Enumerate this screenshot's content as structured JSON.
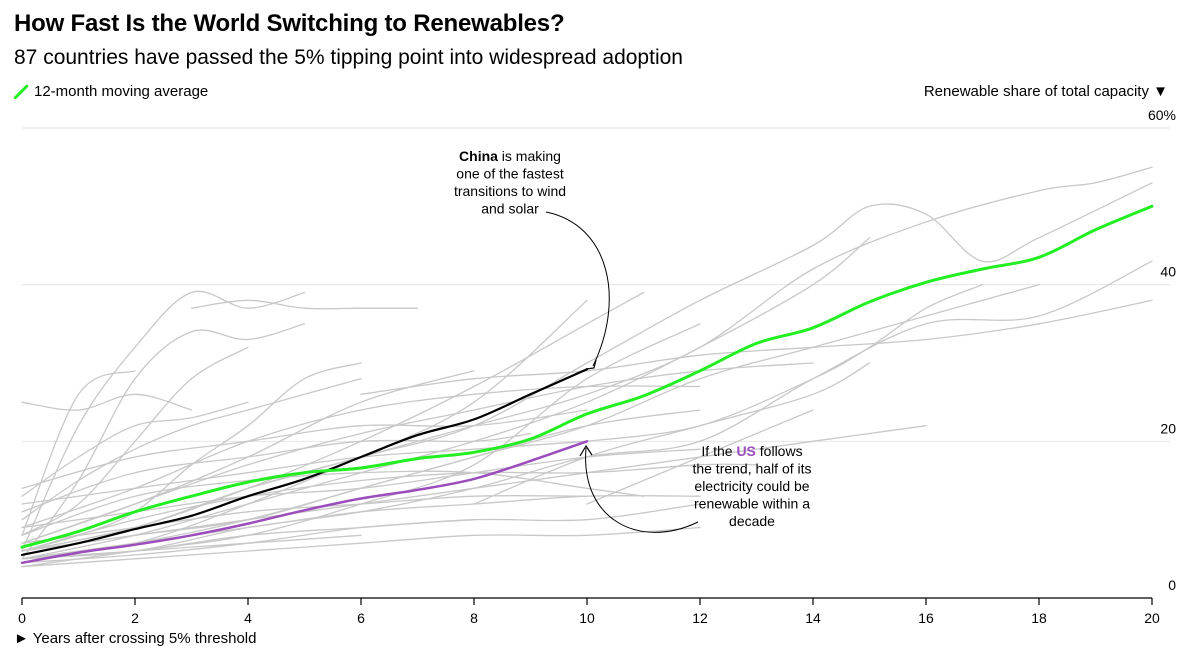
{
  "title": "How Fast Is the World Switching to Renewables?",
  "subtitle": "87 countries have passed the 5% tipping point into widespread adoption",
  "legend": {
    "label": "12-month moving average",
    "color": "#22ee22"
  },
  "y_axis_title": "Renewable share of total capacity ▼",
  "x_axis_title": "► Years after crossing 5% threshold",
  "annotations": {
    "china": [
      "China is making",
      "one of the fastest",
      "transitions to wind",
      "and solar"
    ],
    "china_bold": "China",
    "us": [
      "If the US follows",
      "the trend, half of its",
      "electricity could be",
      "renewable within a",
      "decade"
    ],
    "us_bold": "US"
  },
  "colors": {
    "average": "#22ee22",
    "china": "#000000",
    "us": "#9b4dbb",
    "countries": "#c8c8c8",
    "grid": "#e6e6e6"
  },
  "chart_data": {
    "type": "line",
    "x_label": "► Years after crossing 5% threshold",
    "y_label": "Renewable share of total capacity ▼",
    "xlim": [
      0,
      20
    ],
    "ylim": [
      0,
      60
    ],
    "x_ticks": [
      0,
      2,
      4,
      6,
      8,
      10,
      12,
      14,
      16,
      18,
      20
    ],
    "y_ticks": [
      0,
      20,
      40,
      60
    ],
    "y_tick_labels": [
      "0",
      "20",
      "40",
      "60%"
    ],
    "grid": true,
    "series": [
      {
        "name": "12-month moving average",
        "role": "average",
        "x": [
          0,
          1,
          2,
          3,
          4,
          5,
          6,
          7,
          8,
          9,
          10,
          11,
          12,
          13,
          14,
          15,
          16,
          17,
          18,
          19,
          20
        ],
        "y": [
          6.5,
          8.5,
          11,
          13,
          14.8,
          16,
          16.6,
          17.8,
          18.6,
          20.3,
          23.5,
          25.8,
          29,
          32.5,
          34.5,
          37.8,
          40.3,
          42,
          43.5,
          47,
          50
        ]
      },
      {
        "name": "China",
        "role": "china",
        "x": [
          0,
          1,
          2,
          3,
          4,
          5,
          6,
          7,
          8,
          9,
          10
        ],
        "y": [
          5.5,
          7,
          8.8,
          10.5,
          13,
          15.2,
          18,
          20.8,
          22.8,
          26,
          29.2
        ]
      },
      {
        "name": "US",
        "role": "us",
        "x": [
          0,
          1,
          2,
          3,
          4,
          5,
          6,
          7,
          8,
          9,
          10
        ],
        "y": [
          4.5,
          5.8,
          6.8,
          8,
          9.5,
          11.2,
          12.7,
          13.8,
          15.2,
          17.5,
          20
        ]
      },
      {
        "role": "country",
        "x": [
          0,
          1,
          2,
          3,
          4,
          5
        ],
        "y": [
          6,
          22,
          32,
          39,
          37,
          39
        ]
      },
      {
        "role": "country",
        "x": [
          0,
          1,
          2,
          3,
          4,
          5
        ],
        "y": [
          5,
          15,
          28,
          34,
          33,
          35
        ]
      },
      {
        "role": "country",
        "x": [
          3,
          4,
          5,
          6,
          7
        ],
        "y": [
          37,
          38,
          37,
          37,
          37
        ]
      },
      {
        "role": "country",
        "x": [
          0,
          1,
          2
        ],
        "y": [
          8,
          26,
          29
        ]
      },
      {
        "role": "country",
        "x": [
          0,
          1,
          2,
          3,
          4
        ],
        "y": [
          8,
          12,
          20,
          28,
          32
        ]
      },
      {
        "role": "country",
        "x": [
          0,
          1,
          2,
          3,
          4,
          5,
          6
        ],
        "y": [
          6,
          8,
          11,
          17,
          22,
          28,
          30
        ]
      },
      {
        "role": "country",
        "x": [
          0,
          2,
          4,
          6,
          8,
          10
        ],
        "y": [
          5,
          7,
          12,
          18,
          25,
          38
        ]
      },
      {
        "role": "country",
        "x": [
          0,
          2,
          4,
          6,
          8,
          10,
          11
        ],
        "y": [
          6,
          9,
          14,
          20,
          27,
          35,
          39
        ]
      },
      {
        "role": "country",
        "x": [
          0,
          2,
          4,
          6,
          8,
          10,
          12
        ],
        "y": [
          4,
          6,
          8,
          12,
          17,
          28,
          35
        ]
      },
      {
        "role": "country",
        "x": [
          0,
          1,
          2,
          3
        ],
        "y": [
          25,
          24,
          26,
          24
        ]
      },
      {
        "role": "country",
        "x": [
          0,
          2,
          4,
          6,
          8,
          10,
          12,
          14,
          15
        ],
        "y": [
          5,
          8,
          12,
          16,
          20,
          25,
          32,
          40,
          46
        ]
      },
      {
        "role": "country",
        "x": [
          0,
          2,
          4,
          6,
          8,
          10,
          12,
          14,
          16,
          18,
          19,
          20
        ],
        "y": [
          6,
          9,
          14,
          18,
          22,
          26,
          32,
          42,
          48,
          52,
          53,
          55
        ]
      },
      {
        "role": "country",
        "x": [
          4,
          6,
          8,
          10,
          12,
          14,
          15,
          16,
          17,
          18,
          20
        ],
        "y": [
          14,
          18,
          22,
          30,
          38,
          45,
          50,
          49,
          43,
          46,
          53
        ]
      },
      {
        "role": "country",
        "x": [
          0,
          2,
          4,
          6,
          8,
          10,
          12,
          14,
          16,
          18,
          20
        ],
        "y": [
          5,
          6,
          9,
          11,
          14,
          18,
          20,
          28,
          35,
          36,
          43
        ]
      },
      {
        "role": "country",
        "x": [
          6,
          8,
          10,
          12,
          14,
          16,
          18,
          20
        ],
        "y": [
          26,
          28,
          29,
          31,
          32,
          33,
          35,
          38
        ]
      },
      {
        "role": "country",
        "x": [
          10,
          12,
          14,
          15,
          16,
          17
        ],
        "y": [
          20,
          22,
          28,
          32,
          37,
          40
        ]
      },
      {
        "role": "country",
        "x": [
          8,
          10,
          12,
          14,
          15
        ],
        "y": [
          12,
          18,
          22,
          26,
          30
        ]
      },
      {
        "role": "country",
        "x": [
          10,
          12,
          14
        ],
        "y": [
          12,
          18,
          24
        ]
      },
      {
        "role": "country",
        "x": [
          0,
          2,
          4,
          6,
          8,
          10,
          12
        ],
        "y": [
          5,
          6,
          8,
          9,
          10,
          10,
          12
        ]
      },
      {
        "role": "country",
        "x": [
          0,
          2,
          4,
          6,
          8,
          10,
          12
        ],
        "y": [
          4,
          5,
          6,
          7,
          8,
          8,
          9
        ]
      },
      {
        "role": "country",
        "x": [
          0,
          2,
          4,
          6,
          8,
          10,
          12,
          13
        ],
        "y": [
          6,
          10,
          13,
          15,
          16,
          16,
          17,
          17
        ]
      },
      {
        "role": "country",
        "x": [
          0,
          2,
          4,
          6,
          8,
          10,
          11
        ],
        "y": [
          8,
          13,
          15,
          16,
          16,
          14,
          13
        ]
      },
      {
        "role": "country",
        "x": [
          0,
          2,
          4,
          6,
          8,
          9
        ],
        "y": [
          11,
          16,
          18,
          20,
          20,
          21
        ]
      },
      {
        "role": "country",
        "x": [
          0,
          2,
          4,
          6,
          8,
          10
        ],
        "y": [
          14,
          18,
          20,
          22,
          22,
          24
        ]
      },
      {
        "role": "country",
        "x": [
          0,
          2,
          4,
          6,
          8
        ],
        "y": [
          7,
          12,
          18,
          25,
          29
        ]
      },
      {
        "role": "country",
        "x": [
          0,
          2,
          4,
          6,
          8,
          10,
          12
        ],
        "y": [
          6,
          8,
          10,
          14,
          18,
          22,
          24
        ]
      },
      {
        "role": "country",
        "x": [
          0,
          2,
          4,
          6,
          8,
          10,
          12
        ],
        "y": [
          9,
          14,
          20,
          24,
          26,
          27,
          27
        ]
      },
      {
        "role": "country",
        "x": [
          0,
          1,
          2,
          3,
          4,
          5,
          6
        ],
        "y": [
          10,
          15,
          19,
          22,
          24,
          26,
          28
        ]
      },
      {
        "role": "country",
        "x": [
          0,
          2,
          4,
          6,
          8,
          10
        ],
        "y": [
          12,
          14,
          16,
          18,
          19,
          20
        ]
      },
      {
        "role": "country",
        "x": [
          0,
          2,
          4,
          6,
          8,
          10,
          12
        ],
        "y": [
          5,
          7,
          9,
          11,
          12,
          13,
          13
        ]
      },
      {
        "role": "country",
        "x": [
          0,
          2,
          4,
          6,
          8,
          10,
          12,
          14,
          16
        ],
        "y": [
          6,
          8,
          10,
          12,
          14,
          16,
          18,
          20,
          22
        ]
      },
      {
        "role": "country",
        "x": [
          0,
          2,
          4,
          6,
          8,
          10,
          12,
          14,
          16,
          18
        ],
        "y": [
          5,
          7,
          10,
          14,
          18,
          22,
          28,
          32,
          36,
          40
        ]
      },
      {
        "role": "country",
        "x": [
          0,
          2,
          4,
          6
        ],
        "y": [
          5,
          6,
          7,
          8
        ]
      },
      {
        "role": "country",
        "x": [
          0,
          2,
          4,
          6,
          8
        ],
        "y": [
          4.5,
          5.5,
          7,
          9,
          10
        ]
      },
      {
        "role": "country",
        "x": [
          0,
          2,
          4,
          6,
          8,
          10
        ],
        "y": [
          7,
          9,
          11,
          12,
          13,
          13
        ]
      },
      {
        "role": "country",
        "x": [
          0,
          2,
          4,
          6,
          8,
          10,
          12
        ],
        "y": [
          9,
          11,
          13,
          14,
          16,
          18,
          19
        ]
      },
      {
        "role": "country",
        "x": [
          0,
          1,
          2,
          3,
          4
        ],
        "y": [
          13,
          18,
          22,
          23,
          25
        ]
      },
      {
        "role": "country",
        "x": [
          0,
          2,
          4,
          6,
          8,
          10,
          12,
          14
        ],
        "y": [
          7,
          12,
          17,
          21,
          24,
          27,
          29,
          30
        ]
      }
    ]
  }
}
